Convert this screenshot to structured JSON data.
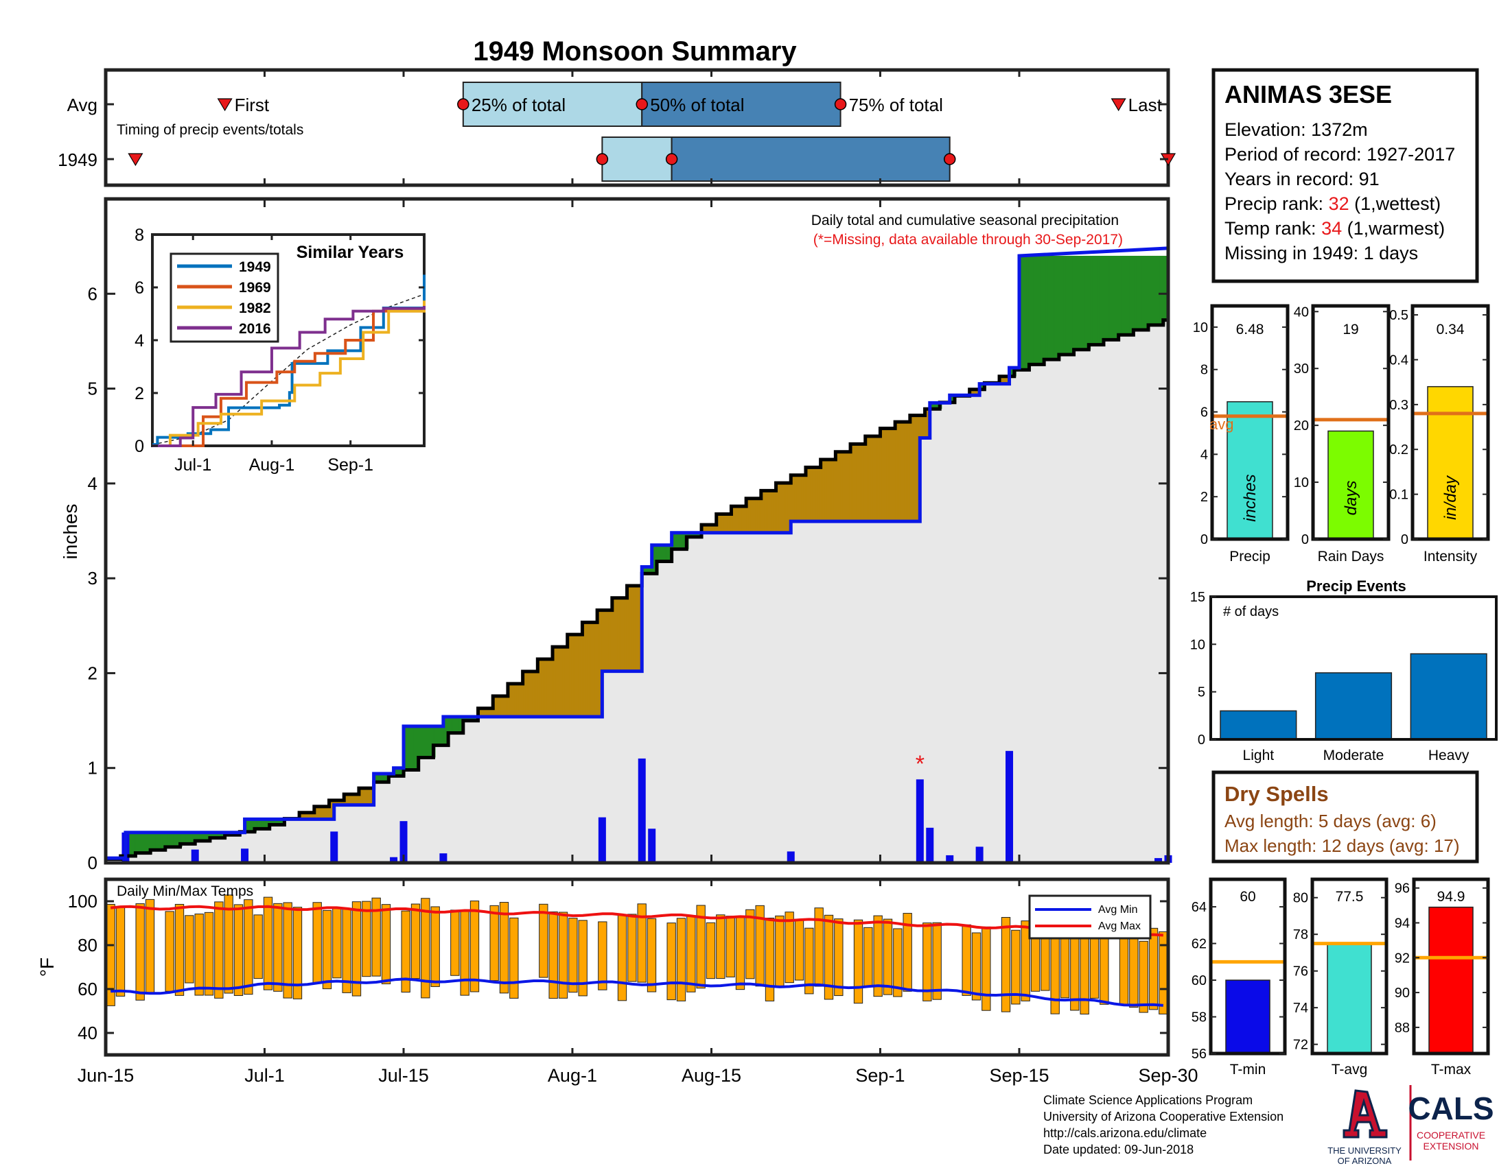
{
  "title": "1949 Monsoon Summary",
  "colors": {
    "title": "#e8181a",
    "cum_year": "#0a17e6",
    "cum_avg": "#000000",
    "above": "#228b22",
    "below": "#b8860b",
    "fill": "#e8e8e8",
    "daily_bar": "#0a0ae8",
    "temp_bar": "#ffa500",
    "avg_min": "#0a17e6",
    "avg_max": "#ee1111",
    "timing_light": "#add8e6",
    "timing_dark": "#4682b4",
    "red_marker": "#e8181a",
    "dry_text": "#8b4513",
    "avg_line": "#e0701a",
    "temp_avg_line": "#ffa500"
  },
  "timing": {
    "row_labels": [
      "Avg",
      "1949"
    ],
    "note": "Timing of precip events/totals",
    "label_first": "First",
    "label_last": "Last",
    "label_25": "25% of total",
    "label_50": "50% of total",
    "label_75": "75% of total",
    "avg": {
      "first": "Jun-27",
      "p25": "Jul-21",
      "p50": "Aug-8",
      "p75": "Aug-28",
      "last": "Sep-25"
    },
    "year": {
      "first": "Jun-18",
      "p25": "Aug-4",
      "p50": "Aug-11",
      "p75": "Sep-8",
      "last": "Sep-30"
    }
  },
  "station": {
    "name": "ANIMAS 3ESE",
    "elevation_label": "Elevation: 1372m",
    "period_label": "Period of record: 1927-2017",
    "years_label": "Years in record: 91",
    "precip_rank_prefix": "Precip rank: ",
    "precip_rank": "32",
    "precip_rank_suffix": " (1,wettest)",
    "temp_rank_prefix": "Temp rank: ",
    "temp_rank": "34",
    "temp_rank_suffix": " (1,warmest)",
    "missing_label": "Missing in 1949: 1 days"
  },
  "main": {
    "ylabel": "inches",
    "note1": "Daily total and cumulative seasonal precipitation",
    "note2": "(*=Missing, data available through 30-Sep-2017)",
    "missing_marker": "*",
    "missing_date": "Sep-5"
  },
  "inset": {
    "title": "Similar Years",
    "legend": [
      "1949",
      "1969",
      "1982",
      "2016"
    ],
    "series_colors": [
      "#0072bd",
      "#d95319",
      "#edb120",
      "#7e2f8e"
    ],
    "ylim": [
      0,
      8
    ],
    "yticks": [
      "0",
      "2",
      "4",
      "6",
      "8"
    ],
    "xticks": [
      "Jul-1",
      "Aug-1",
      "Sep-1"
    ]
  },
  "temps": {
    "title": "Daily Min/Max Temps",
    "ylabel": "°F",
    "yticks": [
      "40",
      "60",
      "80",
      "100"
    ],
    "legend_min": "Avg Min",
    "legend_max": "Avg Max"
  },
  "xaxis": {
    "ticks": [
      "Jun-15",
      "Jul-1",
      "Jul-15",
      "Aug-1",
      "Aug-15",
      "Sep-1",
      "Sep-15",
      "Sep-30"
    ]
  },
  "summary_bars": {
    "avg_label": "avg",
    "panels": [
      {
        "label": "Precip",
        "unit": "inches",
        "value_text": "6.48",
        "yticks": [
          "0",
          "2",
          "4",
          "6",
          "8",
          "10"
        ],
        "color": "#40e0d0"
      },
      {
        "label": "Rain Days",
        "unit": "days",
        "value_text": "19",
        "yticks": [
          "0",
          "10",
          "20",
          "30",
          "40"
        ],
        "color": "#7cfc00"
      },
      {
        "label": "Intensity",
        "unit": "in/day",
        "value_text": "0.34",
        "yticks": [
          "0",
          "0.1",
          "0.2",
          "0.3",
          "0.4",
          "0.5"
        ],
        "color": "#ffd700"
      }
    ]
  },
  "events": {
    "title": "Precip Events",
    "ylabel": "# of days",
    "yticks": [
      "0",
      "5",
      "10",
      "15"
    ],
    "categories": [
      "Light",
      "Moderate",
      "Heavy"
    ],
    "bar_color": "#0072bd"
  },
  "dry_spells": {
    "title": "Dry Spells",
    "avg_line": "Avg length: 5 days (avg: 6)",
    "max_line": "Max length: 12 days (avg: 17)"
  },
  "temp_summary": {
    "panels": [
      {
        "label": "T-min",
        "value_text": "60",
        "yticks": [
          "56",
          "58",
          "60",
          "62",
          "64"
        ],
        "color": "#0a0ae8"
      },
      {
        "label": "T-avg",
        "value_text": "77.5",
        "yticks": [
          "72",
          "74",
          "76",
          "78",
          "80"
        ],
        "color": "#40e0d0"
      },
      {
        "label": "T-max",
        "value_text": "94.9",
        "yticks": [
          "88",
          "90",
          "92",
          "94",
          "96"
        ],
        "color": "#ff0000"
      }
    ]
  },
  "footer": {
    "line1": "Climate Science Applications Program",
    "line2": "University of Arizona Cooperative Extension",
    "line3": "http://cals.arizona.edu/climate",
    "line4": " Date updated: 09-Jun-2018",
    "logo_a_line1": "THE UNIVERSITY",
    "logo_a_line2": "OF ARIZONA",
    "logo_cals": "CALS",
    "logo_cals_line1": "COOPERATIVE",
    "logo_cals_line2": "EXTENSION"
  },
  "chart_data": [
    {
      "type": "area",
      "name": "cumulative",
      "x_start": "Jun-15",
      "x_end": "Sep-30",
      "ylim": [
        0,
        7
      ],
      "yticks": [
        0,
        1,
        2,
        3,
        4,
        5,
        6
      ],
      "ylabel": "inches",
      "series": [
        {
          "x": [
            "Jun-15",
            "Jun-17",
            "Jun-17",
            "Jun-29",
            "Jun-29",
            "Jul-8",
            "Jul-8",
            "Jul-12",
            "Jul-12",
            "Jul-14",
            "Jul-14",
            "Jul-15",
            "Jul-15",
            "Jul-19",
            "Jul-19",
            "Aug-4",
            "Aug-4",
            "Aug-8",
            "Aug-8",
            "Aug-9",
            "Aug-9",
            "Aug-11",
            "Aug-11",
            "Aug-23",
            "Aug-23",
            "Sep-5",
            "Sep-5",
            "Sep-6",
            "Sep-6",
            "Sep-8",
            "Sep-8",
            "Sep-11",
            "Sep-11",
            "Sep-14",
            "Sep-14",
            "Sep-15",
            "Sep-15",
            "Sep-30"
          ],
          "y": [
            0.05,
            0.05,
            0.32,
            0.32,
            0.46,
            0.46,
            0.61,
            0.61,
            0.94,
            0.94,
            1.0,
            1.0,
            1.44,
            1.44,
            1.54,
            1.54,
            2.02,
            2.02,
            3.12,
            3.12,
            3.35,
            3.35,
            3.48,
            3.48,
            3.6,
            3.6,
            4.48,
            4.48,
            4.85,
            4.85,
            4.93,
            4.93,
            5.05,
            5.05,
            5.22,
            5.22,
            6.4,
            6.48
          ]
        },
        {
          "x": [
            "Jun-15",
            "Jul-1",
            "Jul-15",
            "Aug-1",
            "Aug-15",
            "Sep-1",
            "Sep-15",
            "Sep-30"
          ],
          "y": [
            0.04,
            0.38,
            0.98,
            2.45,
            3.65,
            4.58,
            5.22,
            5.74
          ]
        }
      ]
    },
    {
      "type": "bar",
      "name": "daily_precip",
      "ylabel": "inches",
      "x": [
        "Jun-17",
        "Jun-24",
        "Jun-29",
        "Jul-8",
        "Jul-14",
        "Jul-15",
        "Jul-19",
        "Aug-4",
        "Aug-8",
        "Aug-9",
        "Aug-23",
        "Sep-5",
        "Sep-6",
        "Sep-8",
        "Sep-11",
        "Sep-14",
        "Sep-29",
        "Sep-30"
      ],
      "values": [
        0.32,
        0.14,
        0.15,
        0.33,
        0.06,
        0.44,
        0.1,
        0.48,
        1.1,
        0.36,
        0.12,
        0.88,
        0.37,
        0.08,
        0.17,
        1.18,
        0.05,
        0.08
      ]
    },
    {
      "type": "line",
      "name": "similar_years",
      "title": "Similar Years",
      "x_start": "Jun-15",
      "x_end": "Sep-30",
      "ylim": [
        0,
        8
      ],
      "series": [
        {
          "name": "1949",
          "x": [
            "Jun-15",
            "Jun-17",
            "Jun-29",
            "Jul-8",
            "Jul-15",
            "Aug-4",
            "Aug-8",
            "Aug-9",
            "Aug-23",
            "Sep-5",
            "Sep-14",
            "Sep-30"
          ],
          "y": [
            0.05,
            0.32,
            0.46,
            0.61,
            1.44,
            1.54,
            2.02,
            3.12,
            3.6,
            4.48,
            5.22,
            6.48
          ]
        },
        {
          "name": "1969",
          "x": [
            "Jun-15",
            "Jun-28",
            "Jul-5",
            "Jul-12",
            "Jul-22",
            "Aug-3",
            "Aug-10",
            "Aug-18",
            "Aug-30",
            "Sep-10",
            "Sep-30"
          ],
          "y": [
            0,
            0,
            1.1,
            1.8,
            2.4,
            2.8,
            3.2,
            3.5,
            4.0,
            5.1,
            5.2
          ]
        },
        {
          "name": "1982",
          "x": [
            "Jun-15",
            "Jun-22",
            "Jul-3",
            "Jul-12",
            "Jul-28",
            "Aug-10",
            "Aug-20",
            "Aug-28",
            "Sep-6",
            "Sep-16",
            "Sep-30"
          ],
          "y": [
            0,
            0.4,
            0.85,
            1.2,
            1.7,
            2.3,
            2.75,
            3.3,
            4.3,
            5.1,
            5.5
          ]
        },
        {
          "name": "2016",
          "x": [
            "Jun-15",
            "Jun-26",
            "Jul-1",
            "Jul-10",
            "Jul-20",
            "Aug-1",
            "Aug-12",
            "Aug-22",
            "Sep-2",
            "Sep-14",
            "Sep-30"
          ],
          "y": [
            0,
            0.3,
            1.45,
            1.95,
            2.8,
            3.7,
            4.3,
            4.8,
            5.1,
            5.2,
            5.3
          ]
        }
      ]
    },
    {
      "type": "bar",
      "name": "daily_temps",
      "title": "Daily Min/Max Temps",
      "ylim": [
        30,
        110
      ],
      "x_start": "Jun-15",
      "x_end": "Sep-30",
      "avg_min": {
        "x": [
          "Jun-15",
          "Jun-18",
          "Jul-1",
          "Jul-15",
          "Aug-1",
          "Aug-15",
          "Sep-1",
          "Sep-15",
          "Sep-30"
        ],
        "y": [
          59,
          58,
          62,
          64,
          63,
          62,
          61,
          57,
          52
        ]
      },
      "avg_max": {
        "x": [
          "Jun-15",
          "Jul-1",
          "Jul-15",
          "Aug-1",
          "Aug-15",
          "Sep-1",
          "Sep-15",
          "Sep-30"
        ],
        "y": [
          97,
          97,
          96,
          94,
          93,
          90,
          88,
          84
        ]
      }
    },
    {
      "type": "bar",
      "name": "season_totals",
      "categories": [
        "Precip",
        "Rain Days",
        "Intensity"
      ],
      "values": [
        6.48,
        19,
        0.34
      ],
      "averages": [
        5.8,
        21,
        0.28
      ],
      "ylims": [
        [
          0,
          11
        ],
        [
          0,
          41
        ],
        [
          0,
          0.52
        ]
      ]
    },
    {
      "type": "bar",
      "name": "precip_events",
      "title": "Precip Events",
      "categories": [
        "Light",
        "Moderate",
        "Heavy"
      ],
      "values": [
        3,
        7,
        9
      ],
      "ylim": [
        0,
        15
      ]
    },
    {
      "type": "bar",
      "name": "temp_summary",
      "categories": [
        "T-min",
        "T-avg",
        "T-max"
      ],
      "values": [
        60,
        77.5,
        94.9
      ],
      "averages": [
        61,
        77.5,
        92
      ],
      "ylims": [
        [
          56,
          65.5
        ],
        [
          71.5,
          81
        ],
        [
          86.5,
          96.5
        ]
      ]
    }
  ]
}
